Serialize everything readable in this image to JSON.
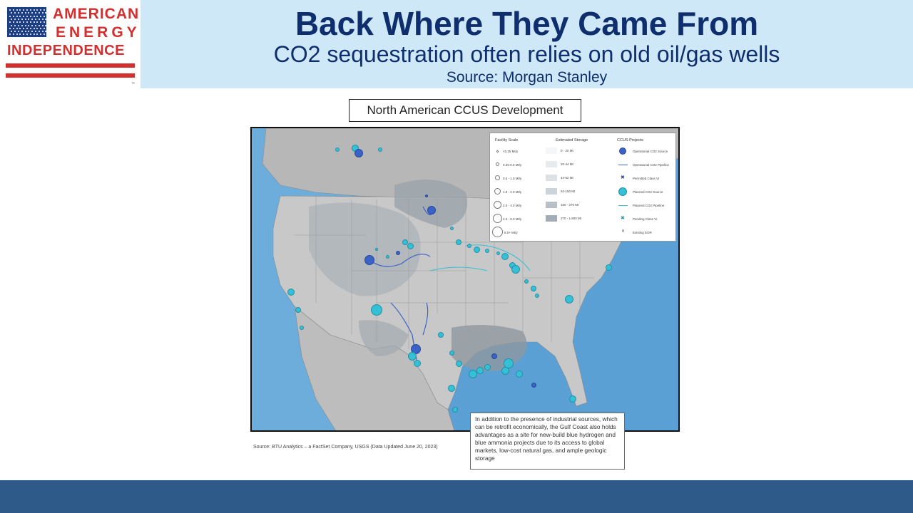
{
  "logo": {
    "line1": "AMERICAN",
    "line2": "ENERGY",
    "line3": "INDEPENDENCE",
    "tm": "™",
    "colors": {
      "red": "#d32f2f",
      "blue": "#1c3f84"
    }
  },
  "header": {
    "title": "Back Where They Came From",
    "subtitle": "CO2 sequestration often relies on old oil/gas wells",
    "source": "Source: Morgan Stanley"
  },
  "map": {
    "title": "North American CCUS Development",
    "legend": {
      "facility_scale": {
        "heading": "Facility Scale",
        "items": [
          "<0.25 Mt/y",
          "0.25-0.5 Mt/y",
          "0.5 - 1.0 Mt/y",
          "1.0 - 2.0 Mt/y",
          "2.0 - 4.0 Mt/y",
          "4.0 - 8.0 Mt/y",
          "8.0+ Mt/y"
        ]
      },
      "estimated_storage": {
        "heading": "Estimated Storage",
        "items": [
          "0 - 20 Mt",
          "20-44 Mt",
          "44-62 Mt",
          "62-150 Mt",
          "150 - 270 Mt",
          "270 - 1,800 Mt"
        ]
      },
      "ccus_projects": {
        "heading": "CCUS Projects",
        "items": [
          "Operational CO2 Source",
          "Operational CO2 Pipeline",
          "Permitted Class VI",
          "Planned CO2 Source",
          "Planned CO2 Pipeline",
          "Pending Class VI",
          "Existing EOR"
        ]
      }
    },
    "note": "In addition to the presence of industrial sources, which can be retrofit economically, the Gulf Coast also holds advantages as a site for new-build blue hydrogen and blue ammonia projects due to its access to global markets, low-cost natural gas, and ample geologic storage",
    "source": "Source: BTU Analytics – a FactSet Company, USGS (Data Updated June 20, 2023)",
    "colors": {
      "operational": "#3a62c7",
      "planned": "#34c0d6",
      "ocean": "#5aa0d4",
      "land": "#c8c8c8",
      "storage_dark": "#9aa3aa"
    }
  }
}
